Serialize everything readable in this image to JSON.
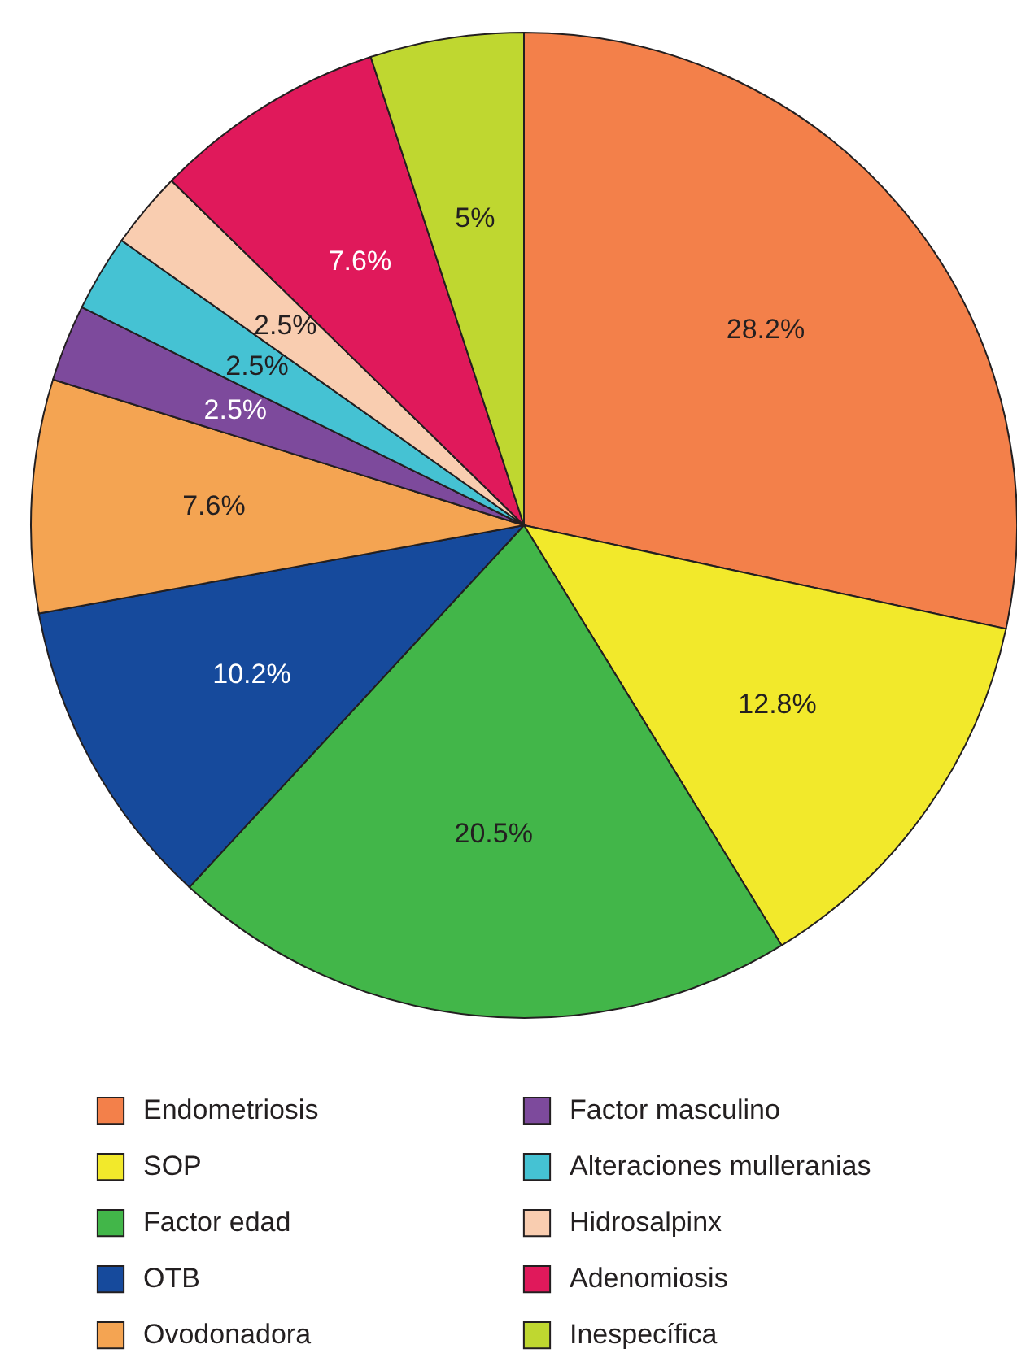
{
  "chart_data": {
    "type": "pie",
    "categories": [
      "Endometriosis",
      "SOP",
      "Factor edad",
      "OTB",
      "Ovodonadora",
      "Factor masculino",
      "Alteraciones mulleranias",
      "Hidrosalpinx",
      "Adenomiosis",
      "Inespecífica"
    ],
    "values": [
      28.2,
      12.8,
      20.5,
      10.2,
      7.6,
      2.5,
      2.5,
      2.5,
      7.6,
      5
    ],
    "value_labels": [
      "28.2%",
      "12.8%",
      "20.5%",
      "10.2%",
      "7.6%",
      "2.5%",
      "2.5%",
      "2.5%",
      "7.6%",
      "5%"
    ],
    "colors": [
      "#f3804a",
      "#f2e92b",
      "#42b649",
      "#164a9c",
      "#f4a452",
      "#7d4a9c",
      "#45c2d3",
      "#f9cdb0",
      "#e0195b",
      "#bfd730"
    ],
    "legend": "bottom"
  }
}
